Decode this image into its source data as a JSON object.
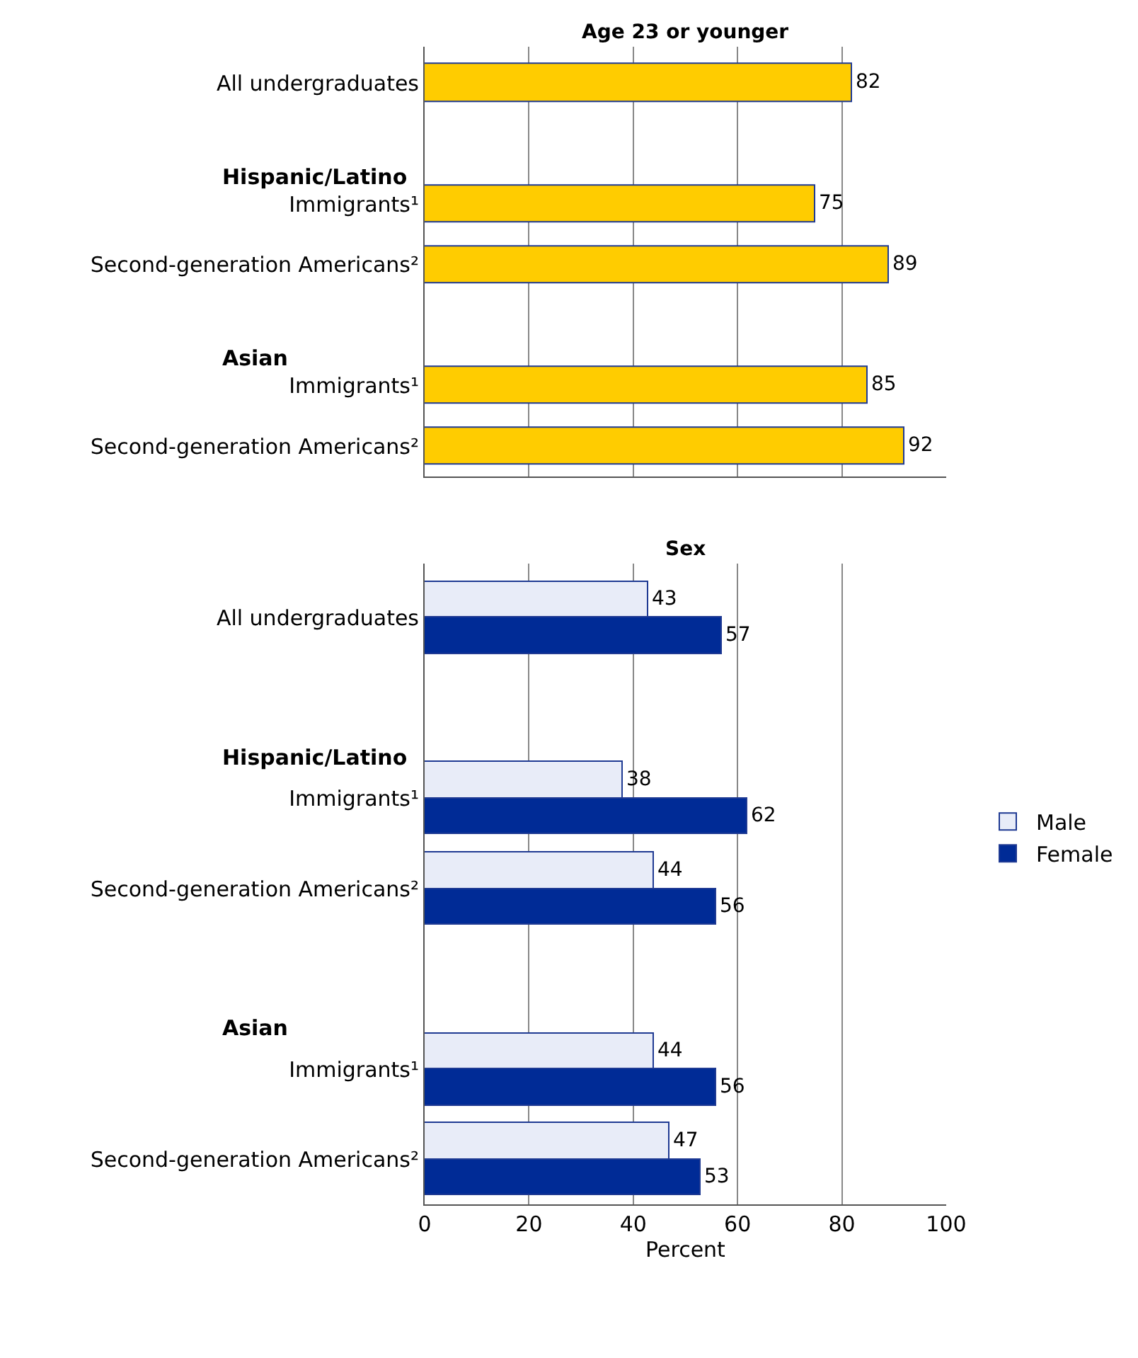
{
  "chart_data": [
    {
      "type": "bar",
      "orientation": "horizontal",
      "title": "Age 23 or younger",
      "categories": [
        "All undergraduates",
        null,
        "Immigrants¹",
        "Second-generation Americans²",
        null,
        "Immigrants¹",
        "Second-generation Americans²"
      ],
      "series": [
        {
          "color": "#ffcc00",
          "values": [
            82,
            null,
            75,
            89,
            null,
            85,
            92
          ]
        }
      ],
      "annotations": [
        "Hispanic/Latino",
        "Asian"
      ],
      "xlim": [
        0,
        100
      ],
      "xticks": [
        0,
        20,
        40,
        60,
        80,
        100
      ],
      "grid": "x",
      "tick_labels": false,
      "data_labels": true
    },
    {
      "type": "bar",
      "orientation": "horizontal",
      "title": "Sex",
      "xlabel": "Percent",
      "categories": [
        "All undergraduates",
        null,
        "Immigrants¹",
        "Second-generation Americans²",
        null,
        "Immigrants¹",
        "Second-generation Americans²"
      ],
      "series": [
        {
          "name": "Male",
          "color": "#e8ecf8",
          "values": [
            43,
            null,
            38,
            44,
            null,
            44,
            47
          ]
        },
        {
          "name": "Female",
          "color": "#002b96",
          "values": [
            57,
            null,
            62,
            56,
            null,
            56,
            53
          ]
        }
      ],
      "annotations": [
        "Hispanic/Latino",
        "Asian"
      ],
      "xlim": [
        0,
        100
      ],
      "xticks": [
        0,
        20,
        40,
        60,
        80,
        100
      ],
      "grid": "x",
      "data_labels": true,
      "legend": "right"
    }
  ]
}
